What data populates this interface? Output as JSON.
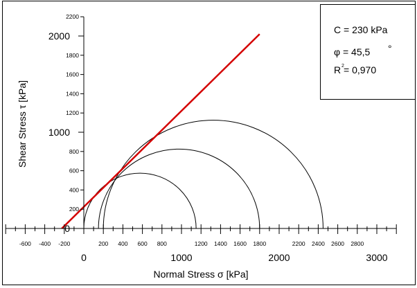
{
  "chart_data": {
    "type": "line",
    "xlabel": "Normal Stress σ [kPa]",
    "ylabel": "Shear Stress τ [kPa]",
    "xlim": [
      -800,
      3200
    ],
    "ylim": [
      0,
      2200
    ],
    "x_minor_ticks": [
      -600,
      -400,
      -200,
      200,
      400,
      600,
      800,
      1200,
      1400,
      1600,
      1800,
      2200,
      2400,
      2600,
      2800
    ],
    "x_major_ticks": [
      0,
      1000,
      2000,
      3000
    ],
    "y_minor_ticks": [
      200,
      400,
      600,
      800,
      1200,
      1400,
      1600,
      1800,
      2200
    ],
    "y_major_ticks": [
      0,
      1000,
      2000
    ],
    "mohr_circles": [
      {
        "sigma3": 0,
        "sigma1": 1150
      },
      {
        "sigma3": 150,
        "sigma1": 1800
      },
      {
        "sigma3": 200,
        "sigma1": 2450
      }
    ],
    "failure_envelope": {
      "x": [
        -225,
        1800
      ],
      "y": [
        0,
        2020
      ],
      "color": "#d40000"
    },
    "legend": {
      "cohesion": "C = 230 kPa",
      "friction": "φ = 45,5",
      "degree": "°",
      "r2_prefix": "R",
      "r2_exp": "2",
      "r2_value": "= 0,970"
    }
  }
}
